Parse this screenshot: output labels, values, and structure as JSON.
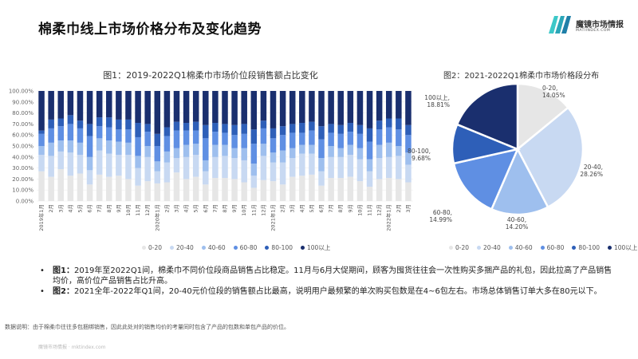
{
  "page": {
    "title": "棉柔巾线上市场价格分布及变化趋势",
    "brand": "魔镜市场情报",
    "brand_sub": "MATIINDEX.COM",
    "note": "数据说明：由于棉柔巾往往多包捆绑销售，因此此处对的销售均价的考量同时包含了产品的包数和单包产品的价位。",
    "footer": "魔镜市场情报 · mktindex.com"
  },
  "colors": {
    "s0_20": "#e6e6e6",
    "s20_40": "#c8d9f2",
    "s40_60": "#9ebfee",
    "s60_80": "#5f8fe3",
    "s80_100": "#2e5fb8",
    "s100plus": "#1a2f6e"
  },
  "bullets": [
    {
      "label": "图1：",
      "text": "2019年至2022Q1间，棉柔巾不同价位段商品销售占比稳定。11月与6月大促期间，顾客为囤货往往会一次性购买多捆产品的礼包，因此拉高了产品销售均价，高价位产品销售占比升高。"
    },
    {
      "label": "图2：",
      "text": "2021全年-2022年Q1间，20-40元价位段的销售额占比最高，说明用户最频繁的单次购买包数是在4~6包左右。市场总体销售订单大多在80元以下。"
    }
  ],
  "chart_data": [
    {
      "type": "bar",
      "stacked": true,
      "title": "图1：2019-2022Q1棉柔巾市场价位段销售额占比变化",
      "xlabel": "",
      "ylabel": "",
      "ylim": [
        0,
        100
      ],
      "yticks": [
        "0.00%",
        "10.00%",
        "20.00%",
        "30.00%",
        "40.00%",
        "50.00%",
        "60.00%",
        "70.00%",
        "80.00%",
        "90.00%",
        "100.00%"
      ],
      "categories": [
        "2019年1月",
        "2月",
        "3月",
        "4月",
        "5月",
        "6月",
        "7月",
        "8月",
        "9月",
        "10月",
        "11月",
        "12月",
        "2020年1月",
        "2月",
        "3月",
        "4月",
        "5月",
        "6月",
        "7月",
        "8月",
        "9月",
        "10月",
        "11月",
        "12月",
        "2021年1月",
        "2月",
        "3月",
        "4月",
        "5月",
        "6月",
        "7月",
        "8月",
        "9月",
        "10月",
        "11月",
        "12月",
        "2022年1月",
        "2月",
        "3月"
      ],
      "legend": [
        "0-20",
        "20-40",
        "40-60",
        "60-80",
        "80-100",
        "100以上"
      ],
      "legend_position": "bottom",
      "series": [
        {
          "name": "0-20",
          "values": [
            27,
            22,
            29,
            23,
            25,
            15,
            24,
            22,
            23,
            20,
            14,
            18,
            16,
            17,
            26,
            20,
            22,
            15,
            21,
            21,
            20,
            17,
            12,
            19,
            18,
            15,
            22,
            23,
            24,
            14,
            21,
            21,
            22,
            18,
            13,
            20,
            21,
            20,
            17
          ]
        },
        {
          "name": "20-40",
          "values": [
            15,
            19,
            16,
            21,
            17,
            13,
            22,
            21,
            19,
            22,
            16,
            22,
            11,
            18,
            13,
            20,
            20,
            12,
            19,
            20,
            19,
            20,
            11,
            22,
            17,
            20,
            17,
            20,
            19,
            13,
            19,
            19,
            20,
            20,
            14,
            19,
            19,
            21,
            16
          ]
        },
        {
          "name": "40-60",
          "values": [
            8,
            12,
            10,
            11,
            11,
            12,
            11,
            12,
            12,
            11,
            11,
            10,
            9,
            10,
            9,
            11,
            10,
            10,
            11,
            10,
            9,
            11,
            11,
            11,
            9,
            11,
            9,
            8,
            8,
            12,
            10,
            8,
            9,
            10,
            11,
            12,
            13,
            9,
            11
          ]
        },
        {
          "name": "60-80",
          "values": [
            11,
            13,
            13,
            15,
            13,
            19,
            11,
            12,
            11,
            12,
            17,
            13,
            14,
            14,
            16,
            13,
            12,
            20,
            12,
            11,
            12,
            13,
            18,
            14,
            13,
            14,
            14,
            11,
            13,
            17,
            12,
            13,
            12,
            13,
            16,
            14,
            14,
            15,
            16
          ]
        },
        {
          "name": "80-100",
          "values": [
            3,
            8,
            7,
            8,
            7,
            11,
            8,
            9,
            9,
            9,
            13,
            7,
            11,
            8,
            8,
            7,
            8,
            12,
            8,
            8,
            9,
            9,
            13,
            7,
            9,
            8,
            8,
            9,
            8,
            12,
            8,
            8,
            8,
            8,
            12,
            8,
            8,
            10,
            9
          ]
        },
        {
          "name": "100以上",
          "values": [
            36,
            26,
            25,
            22,
            27,
            30,
            24,
            24,
            26,
            26,
            29,
            30,
            39,
            33,
            28,
            29,
            28,
            31,
            29,
            30,
            31,
            30,
            35,
            27,
            34,
            32,
            30,
            29,
            28,
            32,
            30,
            31,
            29,
            31,
            34,
            27,
            25,
            25,
            31
          ]
        }
      ]
    },
    {
      "type": "pie",
      "donut": true,
      "title": "图2：2021-2022Q1棉柔巾市场价格段分布",
      "categories": [
        "0-20",
        "20-40",
        "40-60",
        "60-80",
        "80-100",
        "100以上"
      ],
      "values": [
        14.05,
        28.26,
        14.2,
        14.99,
        9.68,
        18.81
      ],
      "labels": [
        "0-20, 14.05%",
        "20-40, 28.26%",
        "40-60, 14.20%",
        "60-80, 14.99%",
        "80-100, 9.68%",
        "100以上, 18.81%"
      ],
      "legend": [
        "0-20",
        "20-40",
        "40-60",
        "60-80",
        "80-100",
        "100以上"
      ],
      "legend_position": "bottom"
    }
  ]
}
